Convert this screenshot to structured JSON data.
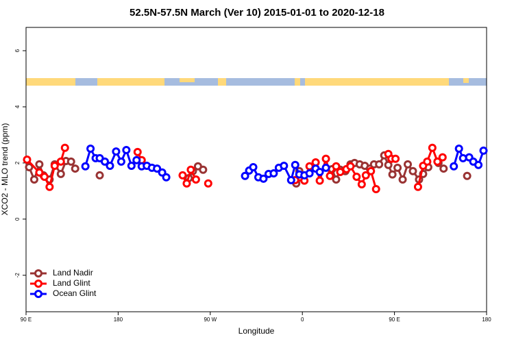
{
  "chart_data": {
    "type": "line",
    "title": "52.5N-57.5N March (Ver 10)   2015-01-01 to 2020-12-18",
    "x_label": "Longitude",
    "y_label": "XCO2 - MLO trend (ppm)",
    "xlim": [
      90,
      540
    ],
    "xticks": [
      {
        "value": 90,
        "label": "90 E"
      },
      180,
      {
        "value": 270,
        "label": "90 W"
      },
      {
        "value": 360,
        "label": "0"
      },
      {
        "value": 450,
        "label": "90 E"
      },
      {
        "value": 540,
        "label": "180"
      }
    ],
    "ylim": [
      -3.3,
      6.83
    ],
    "yticks": [
      -2,
      0,
      2,
      4,
      6
    ],
    "legend": "bottom-left",
    "series": [
      {
        "name": "Land Nadir",
        "color": "#993333",
        "x": [
          93,
          98,
          103,
          107,
          113,
          118,
          124,
          129,
          134,
          138,
          null,
          162,
          null,
          249,
          253,
          258,
          263,
          null,
          354,
          357,
          null,
          389,
          393,
          397,
          402,
          407,
          411,
          416,
          421,
          426,
          430,
          435,
          440,
          444,
          448,
          453,
          458,
          463,
          468,
          474,
          478,
          483,
          null,
          493,
          498,
          null,
          521
        ],
        "values": [
          1.85,
          1.41,
          1.95,
          1.56,
          1.41,
          1.95,
          1.61,
          2.07,
          2.05,
          1.8,
          null,
          1.56,
          null,
          1.46,
          1.71,
          1.88,
          1.76,
          null,
          1.27,
          1.71,
          null,
          1.78,
          1.41,
          1.76,
          1.71,
          1.95,
          2.0,
          1.95,
          1.9,
          1.8,
          1.95,
          1.95,
          2.27,
          1.93,
          1.59,
          1.83,
          1.41,
          1.95,
          1.71,
          1.41,
          1.61,
          1.85,
          null,
          2.0,
          1.8,
          null,
          1.54
        ]
      },
      {
        "name": "Land Glint",
        "color": "#ff0000",
        "x": [
          91,
          103,
          108,
          113,
          118,
          124,
          128,
          null,
          199,
          203,
          null,
          243,
          247,
          251,
          256,
          null,
          268,
          null,
          353,
          362,
          367,
          373,
          377,
          383,
          387,
          393,
          397,
          403,
          407,
          413,
          418,
          422,
          427,
          432,
          null,
          444,
          447,
          451,
          null,
          473,
          478,
          482,
          487,
          492,
          497
        ],
        "values": [
          2.12,
          1.66,
          1.51,
          1.15,
          1.9,
          2.05,
          2.54,
          null,
          2.39,
          2.1,
          null,
          1.56,
          1.27,
          1.76,
          1.41,
          null,
          1.27,
          null,
          1.39,
          1.37,
          1.88,
          2.02,
          1.37,
          2.15,
          1.54,
          1.88,
          1.68,
          1.78,
          1.88,
          1.51,
          1.24,
          1.56,
          1.71,
          1.07,
          null,
          2.32,
          2.15,
          2.15,
          null,
          1.15,
          1.9,
          2.05,
          2.54,
          2.05,
          2.2
        ]
      },
      {
        "name": "Ocean Glint",
        "color": "#0000ff",
        "x": [
          148,
          153,
          158,
          162,
          167,
          172,
          178,
          183,
          188,
          193,
          198,
          203,
          208,
          213,
          218,
          223,
          227,
          null,
          304,
          308,
          312,
          317,
          322,
          327,
          332,
          337,
          342,
          349,
          353,
          357,
          362,
          367,
          373,
          377,
          383,
          null,
          508,
          513,
          517,
          523,
          527,
          532,
          537
        ],
        "values": [
          1.88,
          2.51,
          2.17,
          2.17,
          2.05,
          1.9,
          2.41,
          2.05,
          2.46,
          1.9,
          2.1,
          1.88,
          1.9,
          1.83,
          1.8,
          1.66,
          1.49,
          null,
          1.54,
          1.73,
          1.85,
          1.49,
          1.44,
          1.61,
          1.63,
          1.83,
          1.9,
          1.39,
          1.93,
          1.59,
          1.56,
          1.63,
          1.8,
          1.68,
          1.83,
          null,
          1.88,
          2.51,
          2.17,
          2.2,
          2.05,
          1.93,
          2.44
        ]
      }
    ]
  }
}
